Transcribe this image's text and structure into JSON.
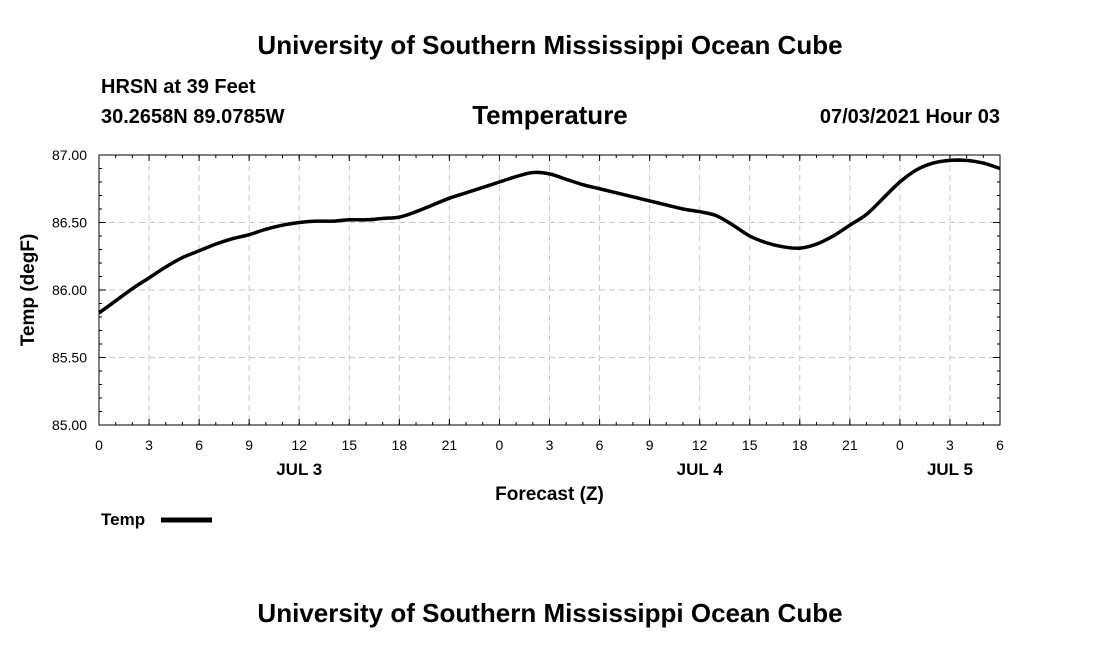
{
  "page": {
    "title_top": "University of Southern Mississippi Ocean Cube",
    "title_bottom": "University of Southern Mississippi Ocean Cube",
    "station": "HRSN at 39 Feet",
    "coords": "30.2658N  89.0785W",
    "datetime": "07/03/2021 Hour 03"
  },
  "chart_data": {
    "type": "line",
    "title": "Temperature",
    "xlabel": "Forecast (Z)",
    "ylabel": "Temp (degF)",
    "ylim": [
      85.0,
      87.0
    ],
    "yticks": [
      "85.00",
      "85.50",
      "86.00",
      "86.50",
      "87.00"
    ],
    "xlim": [
      0,
      54
    ],
    "xticks": [
      "0",
      "3",
      "6",
      "9",
      "12",
      "15",
      "18",
      "21",
      "0",
      "3",
      "6",
      "9",
      "12",
      "15",
      "18",
      "21",
      "0",
      "3",
      "6"
    ],
    "date_labels": [
      {
        "label": "JUL 3",
        "x": 12
      },
      {
        "label": "JUL 4",
        "x": 36
      },
      {
        "label": "JUL 5",
        "x": 51
      }
    ],
    "grid": true,
    "legend": {
      "position": "bottom-left",
      "entries": [
        "Temp"
      ]
    },
    "series": [
      {
        "name": "Temp",
        "x": [
          0,
          1,
          2,
          3,
          4,
          5,
          6,
          7,
          8,
          9,
          10,
          11,
          12,
          13,
          14,
          15,
          16,
          17,
          18,
          19,
          20,
          21,
          22,
          23,
          24,
          25,
          26,
          27,
          28,
          29,
          30,
          31,
          32,
          33,
          34,
          35,
          36,
          37,
          38,
          39,
          40,
          41,
          42,
          43,
          44,
          45,
          46,
          47,
          48,
          49,
          50,
          51,
          52,
          53,
          54
        ],
        "values": [
          85.83,
          85.92,
          86.01,
          86.09,
          86.17,
          86.24,
          86.29,
          86.34,
          86.38,
          86.41,
          86.45,
          86.48,
          86.5,
          86.51,
          86.51,
          86.52,
          86.52,
          86.53,
          86.54,
          86.58,
          86.63,
          86.68,
          86.72,
          86.76,
          86.8,
          86.84,
          86.87,
          86.86,
          86.82,
          86.78,
          86.75,
          86.72,
          86.69,
          86.66,
          86.63,
          86.6,
          86.58,
          86.55,
          86.48,
          86.4,
          86.35,
          86.32,
          86.31,
          86.34,
          86.4,
          86.48,
          86.56,
          86.68,
          86.8,
          86.89,
          86.94,
          86.96,
          86.96,
          86.94,
          86.9
        ]
      }
    ]
  }
}
